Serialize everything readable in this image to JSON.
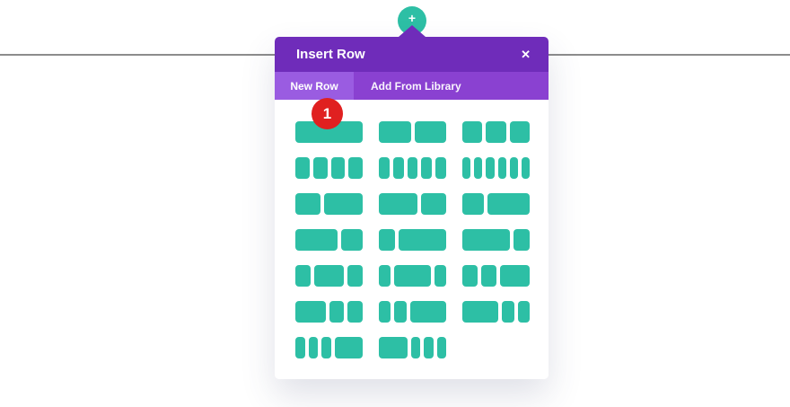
{
  "page": {
    "background_color": "#ffffff",
    "divider_color": "#8c8c8c"
  },
  "add_button": {
    "icon": "+",
    "color": "#2dbfa5"
  },
  "modal": {
    "title": "Insert Row",
    "close_icon": "✕",
    "header_color": "#6f2cba",
    "tab_bar_color": "#8a41d1",
    "active_tab_color": "#9a5ce1",
    "accent_color": "#2dbfa5",
    "tabs": [
      {
        "label": "New Row",
        "active": true
      },
      {
        "label": "Add From Library",
        "active": false
      }
    ],
    "badge": {
      "value": "1",
      "color": "#e02020"
    },
    "layouts": [
      {
        "name": "4_4",
        "weights": [
          1
        ]
      },
      {
        "name": "1_2-1_2",
        "weights": [
          1,
          1
        ]
      },
      {
        "name": "1_3-1_3-1_3",
        "weights": [
          1,
          1,
          1
        ]
      },
      {
        "name": "1_4-x4",
        "weights": [
          1,
          1,
          1,
          1
        ]
      },
      {
        "name": "1_5-x5",
        "weights": [
          1,
          1,
          1,
          1,
          1
        ]
      },
      {
        "name": "1_6-x6",
        "weights": [
          1,
          1,
          1,
          1,
          1,
          1
        ]
      },
      {
        "name": "2_5-3_5",
        "weights": [
          2,
          3
        ]
      },
      {
        "name": "3_5-2_5",
        "weights": [
          3,
          2
        ]
      },
      {
        "name": "1_3-2_3",
        "weights": [
          1,
          2
        ]
      },
      {
        "name": "2_3-1_3",
        "weights": [
          2,
          1
        ]
      },
      {
        "name": "1_4-3_4",
        "weights": [
          1,
          3
        ]
      },
      {
        "name": "3_4-1_4",
        "weights": [
          3,
          1
        ]
      },
      {
        "name": "1_4-1_2-1_4",
        "weights": [
          1,
          2,
          1
        ]
      },
      {
        "name": "1_5-3_5-1_5",
        "weights": [
          1,
          3,
          1
        ]
      },
      {
        "name": "1_4-1_4-1_2",
        "weights": [
          1,
          1,
          2
        ]
      },
      {
        "name": "1_2-1_4-1_4",
        "weights": [
          2,
          1,
          1
        ]
      },
      {
        "name": "1_5-1_5-3_5",
        "weights": [
          1,
          1,
          3
        ]
      },
      {
        "name": "3_5-1_5-1_5",
        "weights": [
          3,
          1,
          1
        ]
      },
      {
        "name": "1_6-1_6-1_6-1_2",
        "weights": [
          1,
          1,
          1,
          3
        ]
      },
      {
        "name": "1_2-1_6-1_6-1_6",
        "weights": [
          3,
          1,
          1,
          1
        ]
      }
    ]
  }
}
